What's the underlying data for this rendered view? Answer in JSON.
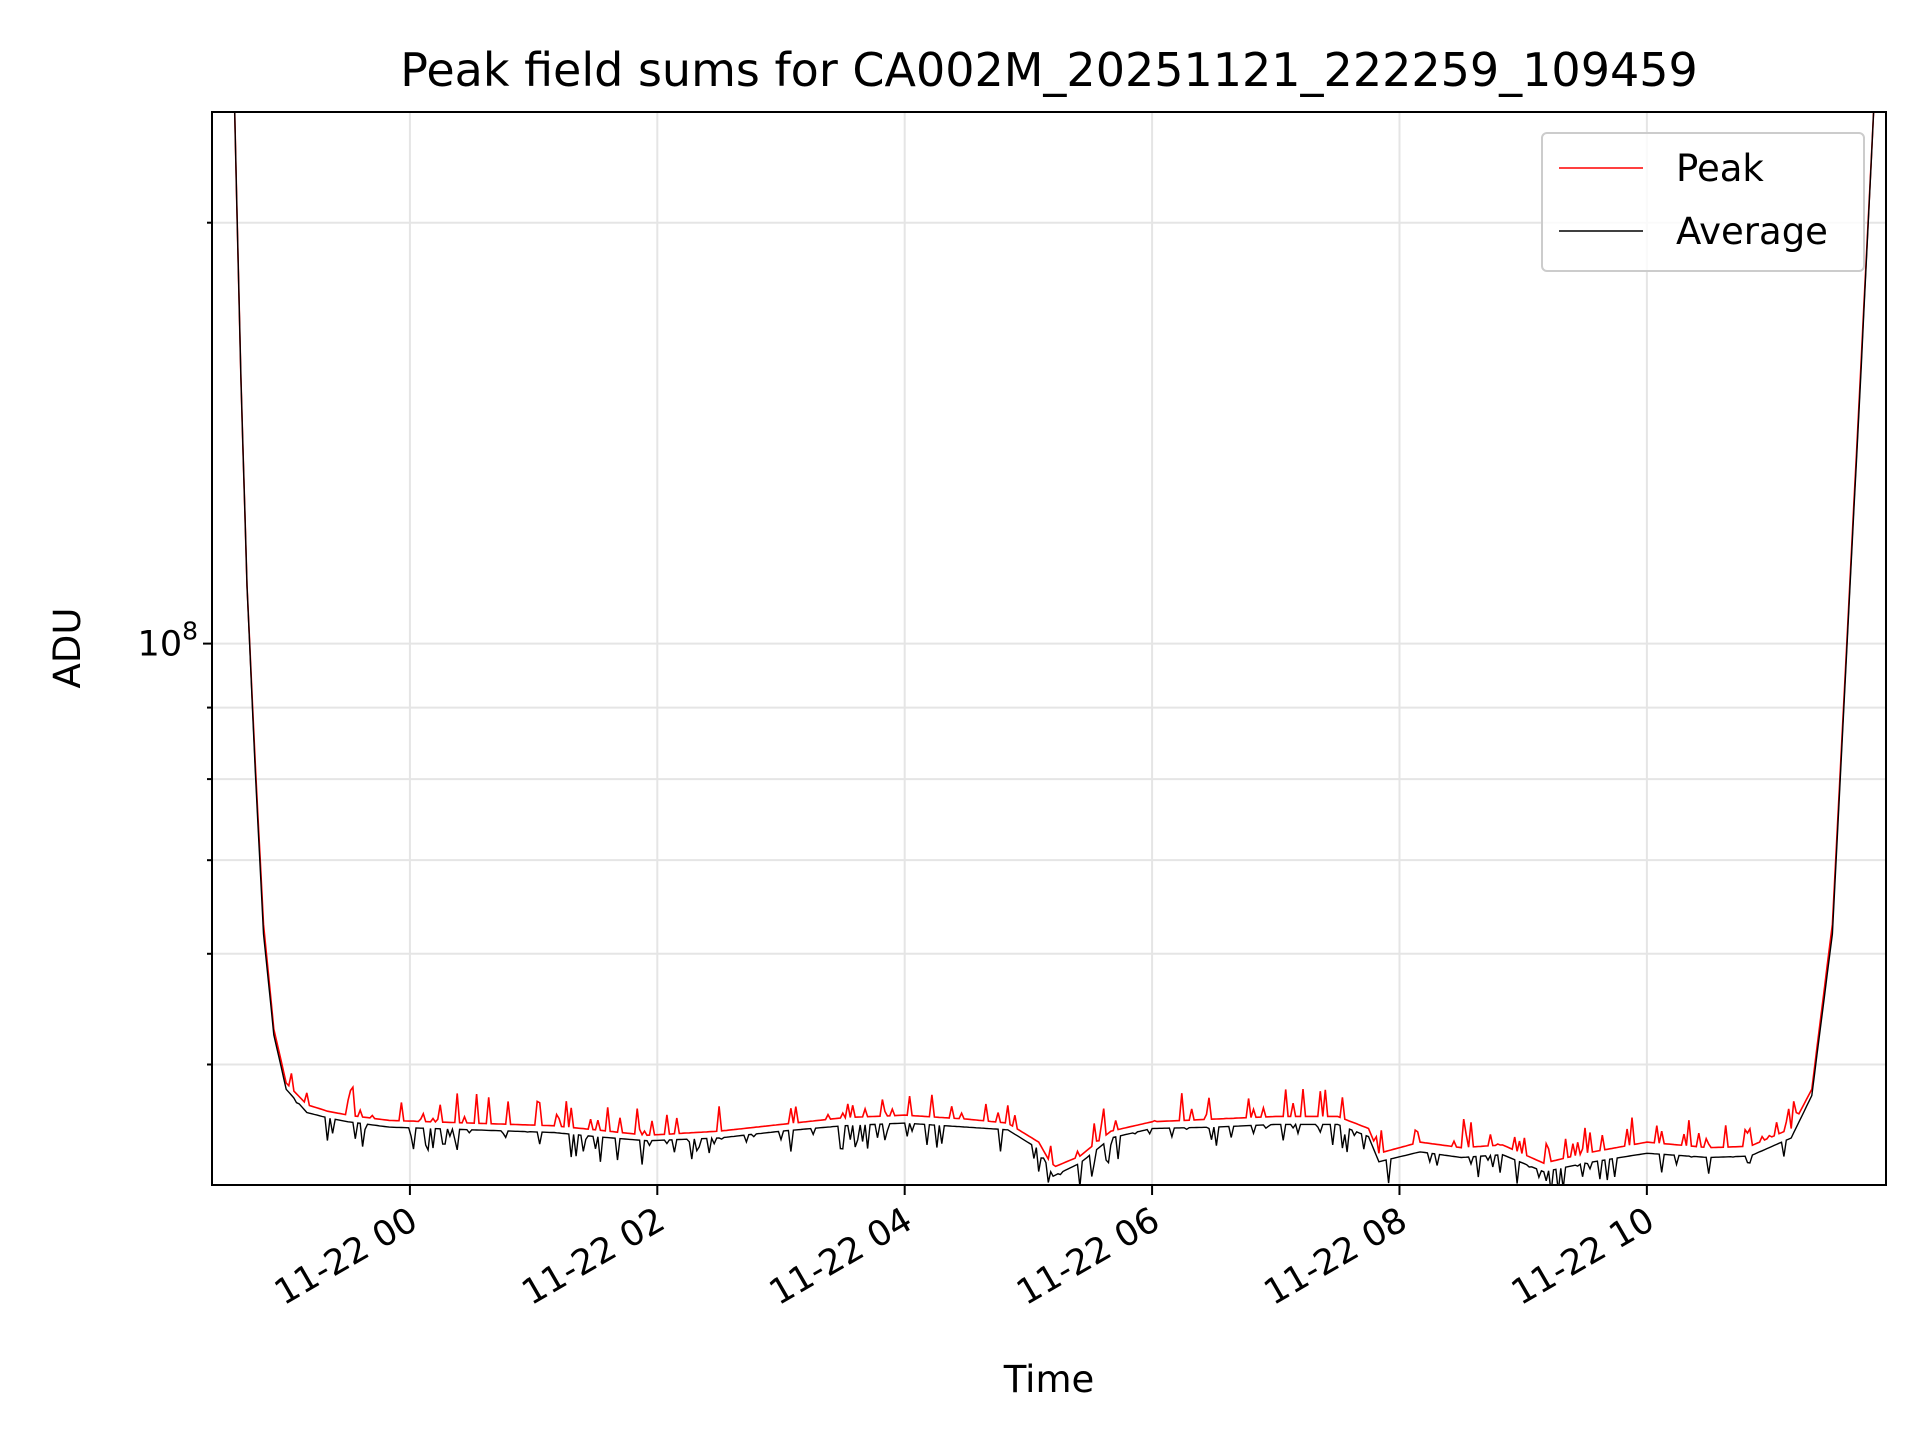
{
  "chart_data": {
    "type": "line",
    "title": "Peak field sums for CA002M_20251121_222259_109459",
    "xlabel": "Time",
    "ylabel": "ADU",
    "yscale": "log",
    "grid": true,
    "legend_position": "top-right",
    "x_ticks": [
      "11-22 00",
      "11-22 02",
      "11-22 04",
      "11-22 06",
      "11-22 08",
      "11-22 10"
    ],
    "y_ticks": [
      {
        "label_base": "10",
        "label_exp": "8",
        "value": 100000000
      }
    ],
    "xlim": [
      "11-21 22:24",
      "11-22 11:56"
    ],
    "ylim": [
      41000000,
      240000000
    ],
    "colors": {
      "peak": "#ff0000",
      "average": "#000000",
      "grid": "#e5e5e5"
    },
    "series": [
      {
        "name": "Peak",
        "color": "#ff0000",
        "points": [
          [
            "11-21 22:35",
            240000000
          ],
          [
            "11-21 22:38",
            155000000
          ],
          [
            "11-21 22:41",
            110000000
          ],
          [
            "11-21 22:45",
            82000000
          ],
          [
            "11-21 22:49",
            63000000
          ],
          [
            "11-21 22:54",
            53000000
          ],
          [
            "11-21 23:00",
            48500000
          ],
          [
            "11-21 23:10",
            46800000
          ],
          [
            "11-21 23:20",
            46300000
          ],
          [
            "11-21 23:30",
            46000000
          ],
          [
            "11-21 23:50",
            45600000
          ],
          [
            "11-22 00:10",
            45500000
          ],
          [
            "11-22 00:30",
            45400000
          ],
          [
            "11-22 00:50",
            45300000
          ],
          [
            "11-22 01:10",
            45200000
          ],
          [
            "11-22 01:30",
            44900000
          ],
          [
            "11-22 01:55",
            44500000
          ],
          [
            "11-22 02:30",
            44800000
          ],
          [
            "11-22 03:00",
            45300000
          ],
          [
            "11-22 03:30",
            45800000
          ],
          [
            "11-22 04:00",
            46000000
          ],
          [
            "11-22 04:30",
            45700000
          ],
          [
            "11-22 04:50",
            45400000
          ],
          [
            "11-22 05:05",
            44000000
          ],
          [
            "11-22 05:12",
            42200000
          ],
          [
            "11-22 05:25",
            43000000
          ],
          [
            "11-22 05:40",
            44800000
          ],
          [
            "11-22 06:00",
            45500000
          ],
          [
            "11-22 06:30",
            45700000
          ],
          [
            "11-22 07:00",
            45900000
          ],
          [
            "11-22 07:30",
            45900000
          ],
          [
            "11-22 07:45",
            45000000
          ],
          [
            "11-22 07:50",
            43200000
          ],
          [
            "11-22 08:10",
            44000000
          ],
          [
            "11-22 08:30",
            43600000
          ],
          [
            "11-22 08:50",
            43800000
          ],
          [
            "11-22 09:10",
            42500000
          ],
          [
            "11-22 09:30",
            43200000
          ],
          [
            "11-22 10:00",
            44000000
          ],
          [
            "11-22 10:30",
            43600000
          ],
          [
            "11-22 10:50",
            43700000
          ],
          [
            "11-22 11:10",
            45000000
          ],
          [
            "11-22 11:20",
            48000000
          ],
          [
            "11-22 11:30",
            63000000
          ],
          [
            "11-22 11:37",
            100000000
          ],
          [
            "11-22 11:44",
            160000000
          ],
          [
            "11-22 11:50",
            240000000
          ]
        ]
      },
      {
        "name": "Average",
        "color": "#000000",
        "points": [
          [
            "11-21 22:35",
            240000000
          ],
          [
            "11-21 22:38",
            155000000
          ],
          [
            "11-21 22:41",
            110000000
          ],
          [
            "11-21 22:45",
            81000000
          ],
          [
            "11-21 22:49",
            62000000
          ],
          [
            "11-21 22:54",
            52500000
          ],
          [
            "11-21 23:00",
            48000000
          ],
          [
            "11-21 23:10",
            46200000
          ],
          [
            "11-21 23:20",
            45800000
          ],
          [
            "11-21 23:30",
            45500000
          ],
          [
            "11-21 23:50",
            45100000
          ],
          [
            "11-22 00:10",
            45000000
          ],
          [
            "11-22 00:30",
            44900000
          ],
          [
            "11-22 00:50",
            44800000
          ],
          [
            "11-22 01:10",
            44700000
          ],
          [
            "11-22 01:30",
            44400000
          ],
          [
            "11-22 01:55",
            44100000
          ],
          [
            "11-22 02:30",
            44300000
          ],
          [
            "11-22 03:00",
            44800000
          ],
          [
            "11-22 03:30",
            45200000
          ],
          [
            "11-22 04:00",
            45400000
          ],
          [
            "11-22 04:30",
            45100000
          ],
          [
            "11-22 04:50",
            44900000
          ],
          [
            "11-22 05:05",
            43500000
          ],
          [
            "11-22 05:12",
            41600000
          ],
          [
            "11-22 05:25",
            42500000
          ],
          [
            "11-22 05:40",
            44300000
          ],
          [
            "11-22 06:00",
            45000000
          ],
          [
            "11-22 06:30",
            45100000
          ],
          [
            "11-22 07:00",
            45300000
          ],
          [
            "11-22 07:30",
            45300000
          ],
          [
            "11-22 07:45",
            44400000
          ],
          [
            "11-22 07:50",
            42600000
          ],
          [
            "11-22 08:10",
            43300000
          ],
          [
            "11-22 08:30",
            42900000
          ],
          [
            "11-22 08:50",
            43100000
          ],
          [
            "11-22 09:10",
            41900000
          ],
          [
            "11-22 09:30",
            42500000
          ],
          [
            "11-22 10:00",
            43200000
          ],
          [
            "11-22 10:30",
            42900000
          ],
          [
            "11-22 10:50",
            43000000
          ],
          [
            "11-22 11:10",
            44300000
          ],
          [
            "11-22 11:20",
            47500000
          ],
          [
            "11-22 11:30",
            62000000
          ],
          [
            "11-22 11:37",
            99000000
          ],
          [
            "11-22 11:44",
            158000000
          ],
          [
            "11-22 11:50",
            240000000
          ]
        ]
      }
    ]
  }
}
